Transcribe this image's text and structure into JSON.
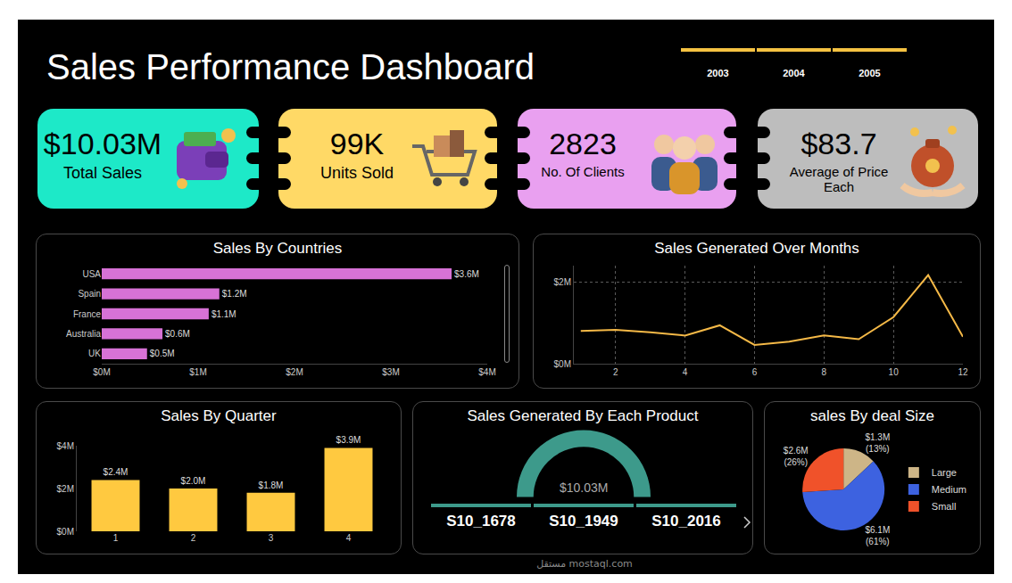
{
  "title": "Sales Performance Dashboard",
  "year_slicer": [
    "2003",
    "2004",
    "2005"
  ],
  "kpis": [
    {
      "value": "$10.03M",
      "label": "Total Sales"
    },
    {
      "value": "99K",
      "label": "Units Sold"
    },
    {
      "value": "2823",
      "label": "No. Of Clients"
    },
    {
      "value": "$83.7",
      "label": "Average of Price Each"
    }
  ],
  "chart_data": [
    {
      "type": "bar",
      "title": "Sales By Countries",
      "orientation": "horizontal",
      "categories": [
        "USA",
        "Spain",
        "France",
        "Australia",
        "UK"
      ],
      "values": [
        3630000,
        1220000,
        1110000,
        630000,
        470000
      ],
      "value_labels": [
        "$3.6M",
        "$1.2M",
        "$1.1M",
        "$0.6M",
        "$0.5M"
      ],
      "data_labels": true,
      "color": "#d772d6",
      "xlim": [
        0,
        4000000
      ],
      "xticks": [
        {
          "value": 0,
          "label": "$0M"
        },
        {
          "value": 1000000,
          "label": "$1M"
        },
        {
          "value": 2000000,
          "label": "$2M"
        },
        {
          "value": 3000000,
          "label": "$3M"
        },
        {
          "value": 4000000,
          "label": "$4M"
        }
      ],
      "grid": false
    },
    {
      "type": "line",
      "title": "Sales Generated Over Months",
      "x": [
        1,
        2,
        3,
        4,
        5,
        6,
        7,
        8,
        9,
        10,
        11,
        12
      ],
      "values": [
        800000,
        830000,
        770000,
        690000,
        940000,
        460000,
        540000,
        690000,
        600000,
        1140000,
        2170000,
        660000
      ],
      "color": "#f5b947",
      "xlim": [
        0.8,
        12
      ],
      "xticks": [
        2,
        4,
        6,
        8,
        10,
        12
      ],
      "ylim": [
        0,
        2400000
      ],
      "yticks": [
        {
          "value": 0,
          "label": "$0M"
        },
        {
          "value": 2000000,
          "label": "$2M"
        }
      ],
      "grid": true
    },
    {
      "type": "bar",
      "title": "Sales By Quarter",
      "categories": [
        "1",
        "2",
        "3",
        "4"
      ],
      "values": [
        2400000,
        2000000,
        1800000,
        3900000
      ],
      "value_labels": [
        "$2.4M",
        "$2.0M",
        "$1.8M",
        "$3.9M"
      ],
      "data_labels": true,
      "color": "#ffc940",
      "ylim": [
        0,
        4000000
      ],
      "yticks": [
        {
          "value": 0,
          "label": "$0M"
        },
        {
          "value": 2000000,
          "label": "$2M"
        },
        {
          "value": 4000000,
          "label": "$4M"
        }
      ],
      "grid": false
    },
    {
      "type": "gauge",
      "title": "Sales Generated By Each Product",
      "values": [
        10030000
      ],
      "value_labels": [
        "$10.03M"
      ],
      "color": "#3d9a8b",
      "items": [
        "S10_1678",
        "S10_1949",
        "S10_2016"
      ]
    },
    {
      "type": "pie",
      "title": "sales By deal Size",
      "categories": [
        "Large",
        "Medium",
        "Small"
      ],
      "values": [
        1300000,
        6100000,
        2600000
      ],
      "value_labels": [
        "$1.3M (13%)",
        "$6.1M (61%)",
        "$2.6M (26%)"
      ],
      "colors": [
        "#cdb587",
        "#3d62e0",
        "#f0522a"
      ],
      "data_labels": true,
      "legend": "right"
    }
  ],
  "watermark": {
    "logo": "مستقل",
    "site": "mostaql.com"
  }
}
